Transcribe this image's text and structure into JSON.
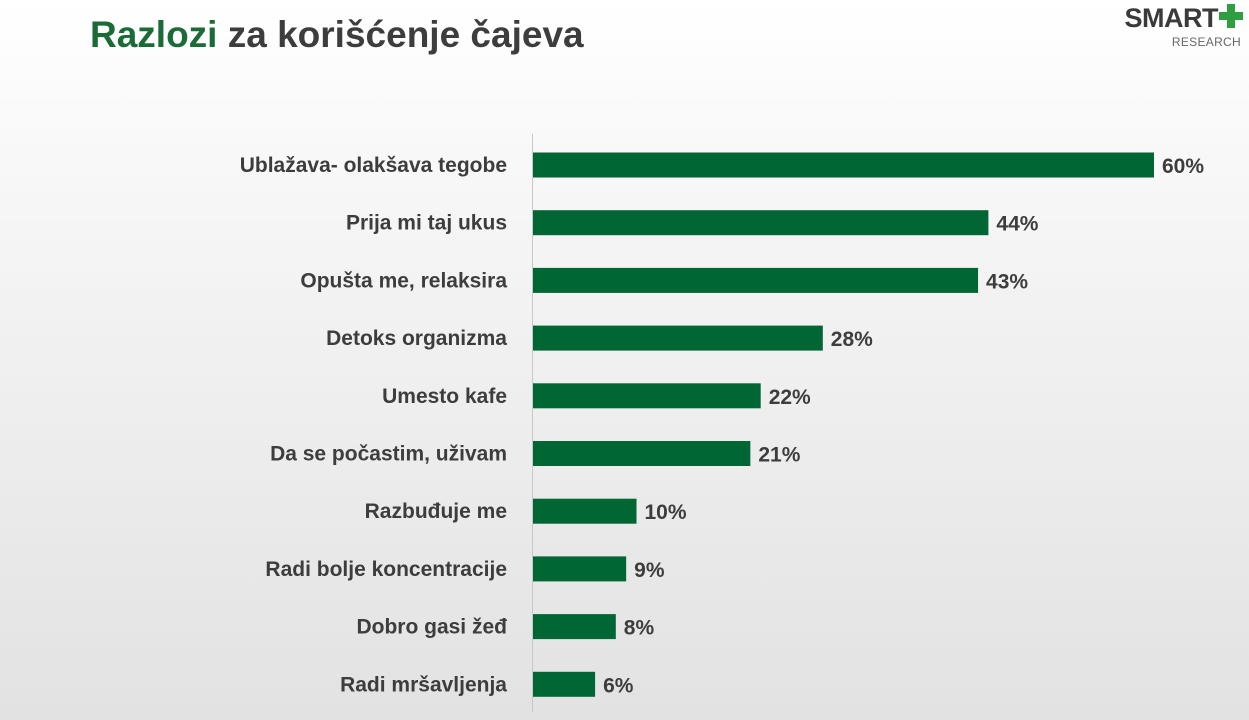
{
  "title": {
    "accent": "Razlozi",
    "rest": " za korišćenje čajeva"
  },
  "logo": {
    "main": "SMART",
    "sub": "RESEARCH",
    "icon": "plus-icon",
    "plus_color": "#2e9e3e"
  },
  "chart_data": {
    "type": "bar",
    "orientation": "horizontal",
    "categories": [
      "Ublažava- olakšava tegobe",
      "Prija mi taj ukus",
      "Opušta me, relaksira",
      "Detoks organizma",
      "Umesto kafe",
      "Da se počastim, uživam",
      "Razbuđuje me",
      "Radi bolje koncentracije",
      "Dobro gasi žeđ",
      "Radi mršavljenja"
    ],
    "values": [
      60,
      44,
      43,
      28,
      22,
      21,
      10,
      9,
      8,
      6
    ],
    "value_labels": [
      "60%",
      "44%",
      "43%",
      "28%",
      "22%",
      "21%",
      "10%",
      "9%",
      "8%",
      "6%"
    ],
    "unit": "%",
    "bar_color": "#006633",
    "xlim": [
      0,
      60
    ],
    "grid": false,
    "legend": "none"
  }
}
